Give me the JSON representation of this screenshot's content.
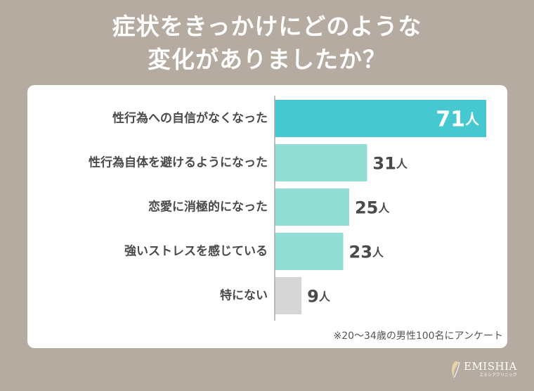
{
  "title_lines": [
    "症状をきっかけにどのような",
    "変化がありましたか？"
  ],
  "chart_data": {
    "type": "bar",
    "orientation": "horizontal",
    "categories": [
      "性行為への自信がなくなった",
      "性行為自体を避けるようになった",
      "恋愛に消極的になった",
      "強いストレスを感じている",
      "特にない"
    ],
    "values": [
      71,
      31,
      25,
      23,
      9
    ],
    "unit": "人",
    "xlim": [
      0,
      71
    ]
  },
  "colors": {
    "background": "#b5aba0",
    "bar_highlight": "#45c8d0",
    "bar_normal": "#92ddd4",
    "bar_none": "#d6d6d6",
    "axis": "#aaaaaa",
    "label_text": "#4a4a4a",
    "value_highlight_text": "#ffffff"
  },
  "footnote": "※20～34歳の男性100名にアンケート",
  "logo": {
    "name": "EMISHIA",
    "subtitle": "エミシアクリニック"
  }
}
